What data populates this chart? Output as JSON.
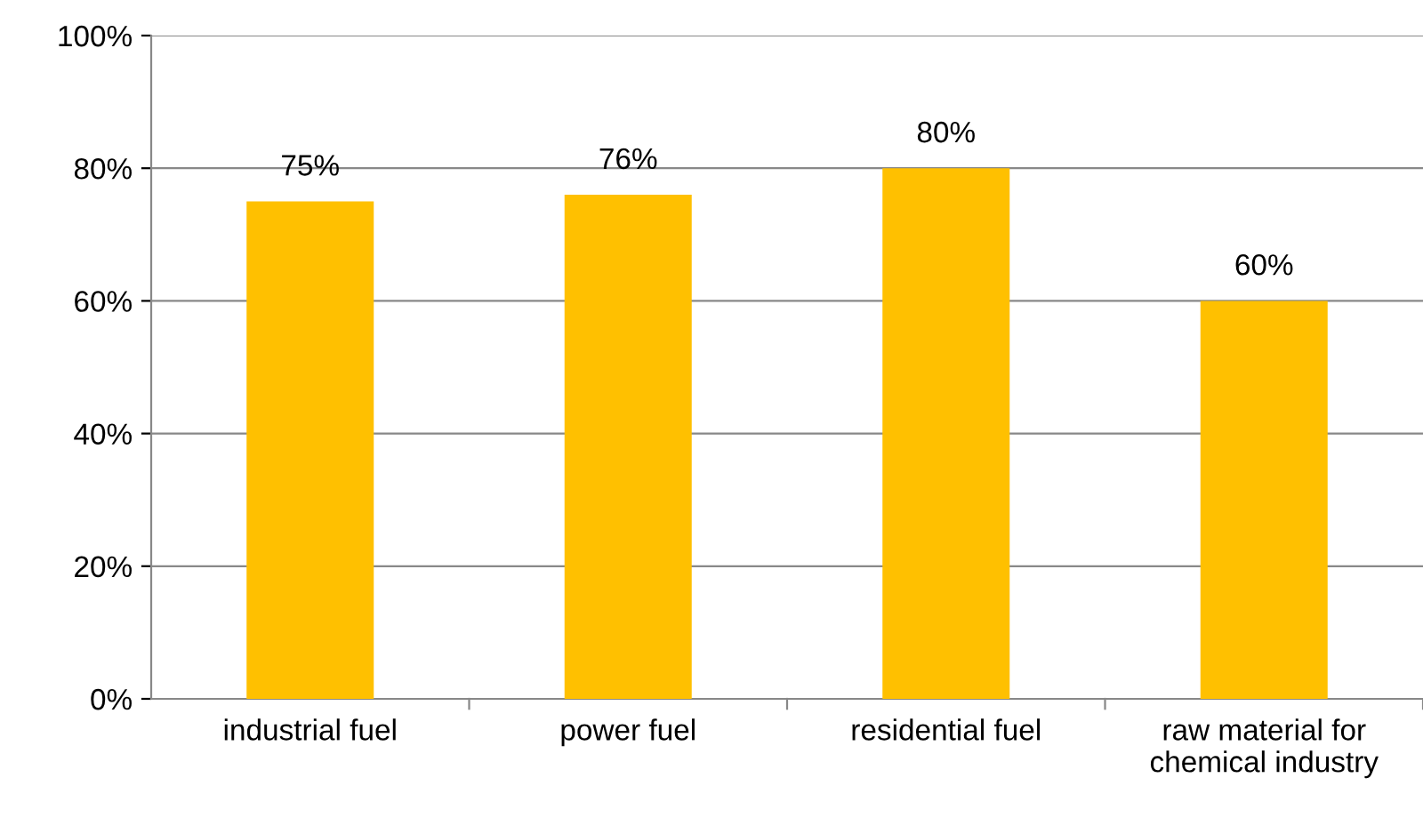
{
  "chart_data": {
    "type": "bar",
    "categories": [
      "industrial fuel",
      "power fuel",
      "residential fuel",
      "raw material for\nchemical industry"
    ],
    "values": [
      75,
      76,
      80,
      60
    ],
    "value_labels": [
      "75%",
      "76%",
      "80%",
      "60%"
    ],
    "color": "#ffc000",
    "ylim": [
      0,
      100
    ],
    "yticks": [
      {
        "value": 0,
        "label": "0%"
      },
      {
        "value": 20,
        "label": "20%"
      },
      {
        "value": 40,
        "label": "40%"
      },
      {
        "value": 60,
        "label": "60%"
      },
      {
        "value": 80,
        "label": "80%"
      },
      {
        "value": 100,
        "label": "100%"
      }
    ],
    "grid": "y"
  }
}
